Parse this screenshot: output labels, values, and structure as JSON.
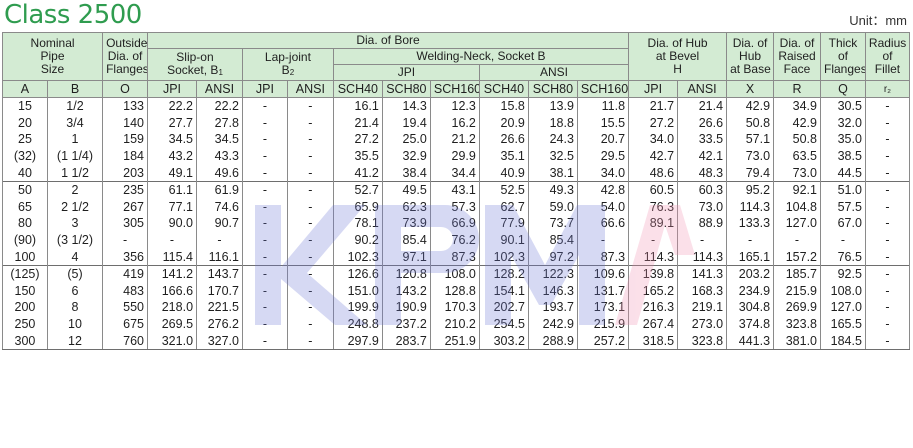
{
  "title": "Class 2500",
  "unit": "Unit：mm",
  "watermark_text": "KPMA",
  "headers": {
    "nominal": "Nominal Pipe Size",
    "nominal_l1": "Nominal",
    "nominal_l2": "Pipe",
    "nominal_l3": "Size",
    "outside_l1": "Outside",
    "outside_l2": "Dia. of",
    "outside_l3": "Flanges",
    "dia_of_bore": "Dia. of Bore",
    "slipon_l1": "Slip-on",
    "slipon_l2": "Socket, B",
    "slipon_sub": "1",
    "lapjoint_l1": "Lap-joint",
    "lapjoint_l2": "B",
    "lapjoint_sub": "2",
    "welding_neck": "Welding-Neck, Socket B",
    "jpi": "JPI",
    "ansi": "ANSI",
    "hub_bevel_l1": "Dia. of Hub",
    "hub_bevel_l2": "at Bevel",
    "hub_bevel_l3": "H",
    "hub_base_l1": "Dia. of",
    "hub_base_l2": "Hub",
    "hub_base_l3": "at Base",
    "raised_l1": "Dia. of",
    "raised_l2": "Raised",
    "raised_l3": "Face",
    "thick_l1": "Thick",
    "thick_l2": "of",
    "thick_l3": "Flanges",
    "radius_l1": "Radius",
    "radius_l2": "of",
    "radius_l3": "Fillet",
    "cols": [
      "A",
      "B",
      "O",
      "JPI",
      "ANSI",
      "JPI",
      "ANSI",
      "SCH40",
      "SCH80",
      "SCH160",
      "SCH40",
      "SCH80",
      "SCH160",
      "JPI",
      "ANSI",
      "X",
      "R",
      "Q",
      "r₂"
    ]
  },
  "rows": [
    [
      "15",
      "1/2",
      "133",
      "22.2",
      "22.2",
      "-",
      "-",
      "16.1",
      "14.3",
      "12.3",
      "15.8",
      "13.9",
      "11.8",
      "21.7",
      "21.4",
      "42.9",
      "34.9",
      "30.5",
      "-"
    ],
    [
      "20",
      "3/4",
      "140",
      "27.7",
      "27.8",
      "-",
      "-",
      "21.4",
      "19.4",
      "16.2",
      "20.9",
      "18.8",
      "15.5",
      "27.2",
      "26.6",
      "50.8",
      "42.9",
      "32.0",
      "-"
    ],
    [
      "25",
      "1",
      "159",
      "34.5",
      "34.5",
      "-",
      "-",
      "27.2",
      "25.0",
      "21.2",
      "26.6",
      "24.3",
      "20.7",
      "34.0",
      "33.5",
      "57.1",
      "50.8",
      "35.0",
      "-"
    ],
    [
      "(32)",
      "(1 1/4)",
      "184",
      "43.2",
      "43.3",
      "-",
      "-",
      "35.5",
      "32.9",
      "29.9",
      "35.1",
      "32.5",
      "29.5",
      "42.7",
      "42.1",
      "73.0",
      "63.5",
      "38.5",
      "-"
    ],
    [
      "40",
      "1 1/2",
      "203",
      "49.1",
      "49.6",
      "-",
      "-",
      "41.2",
      "38.4",
      "34.4",
      "40.9",
      "38.1",
      "34.0",
      "48.6",
      "48.3",
      "79.4",
      "73.0",
      "44.5",
      "-"
    ],
    [
      "50",
      "2",
      "235",
      "61.1",
      "61.9",
      "-",
      "-",
      "52.7",
      "49.5",
      "43.1",
      "52.5",
      "49.3",
      "42.8",
      "60.5",
      "60.3",
      "95.2",
      "92.1",
      "51.0",
      "-"
    ],
    [
      "65",
      "2 1/2",
      "267",
      "77.1",
      "74.6",
      "-",
      "-",
      "65.9",
      "62.3",
      "57.3",
      "62.7",
      "59.0",
      "54.0",
      "76.3",
      "73.0",
      "114.3",
      "104.8",
      "57.5",
      "-"
    ],
    [
      "80",
      "3",
      "305",
      "90.0",
      "90.7",
      "-",
      "-",
      "78.1",
      "73.9",
      "66.9",
      "77.9",
      "73.7",
      "66.6",
      "89.1",
      "88.9",
      "133.3",
      "127.0",
      "67.0",
      "-"
    ],
    [
      "(90)",
      "(3 1/2)",
      "-",
      "-",
      "-",
      "-",
      "-",
      "90.2",
      "85.4",
      "76.2",
      "90.1",
      "85.4",
      "-",
      "-",
      "-",
      "-",
      "-",
      "-",
      "-"
    ],
    [
      "100",
      "4",
      "356",
      "115.4",
      "116.1",
      "-",
      "-",
      "102.3",
      "97.1",
      "87.3",
      "102.3",
      "97.2",
      "87.3",
      "114.3",
      "114.3",
      "165.1",
      "157.2",
      "76.5",
      "-"
    ],
    [
      "(125)",
      "(5)",
      "419",
      "141.2",
      "143.7",
      "-",
      "-",
      "126.6",
      "120.8",
      "108.0",
      "128.2",
      "122.3",
      "109.6",
      "139.8",
      "141.3",
      "203.2",
      "185.7",
      "92.5",
      "-"
    ],
    [
      "150",
      "6",
      "483",
      "166.6",
      "170.7",
      "-",
      "-",
      "151.0",
      "143.2",
      "128.8",
      "154.1",
      "146.3",
      "131.7",
      "165.2",
      "168.3",
      "234.9",
      "215.9",
      "108.0",
      "-"
    ],
    [
      "200",
      "8",
      "550",
      "218.0",
      "221.5",
      "-",
      "-",
      "199.9",
      "190.9",
      "170.3",
      "202.7",
      "193.7",
      "173.1",
      "216.3",
      "219.1",
      "304.8",
      "269.9",
      "127.0",
      "-"
    ],
    [
      "250",
      "10",
      "675",
      "269.5",
      "276.2",
      "-",
      "-",
      "248.8",
      "237.2",
      "210.2",
      "254.5",
      "242.9",
      "215.9",
      "267.4",
      "273.0",
      "374.8",
      "323.8",
      "165.5",
      "-"
    ],
    [
      "300",
      "12",
      "760",
      "321.0",
      "327.0",
      "-",
      "-",
      "297.9",
      "283.7",
      "251.9",
      "303.2",
      "288.9",
      "257.2",
      "318.5",
      "323.8",
      "441.3",
      "381.0",
      "184.5",
      "-"
    ]
  ],
  "colors": {
    "title": "#2f9c4f",
    "header_bg": "#d3ebd3",
    "watermark_blue": "#6f78d6",
    "watermark_pink": "#f08fb1"
  }
}
